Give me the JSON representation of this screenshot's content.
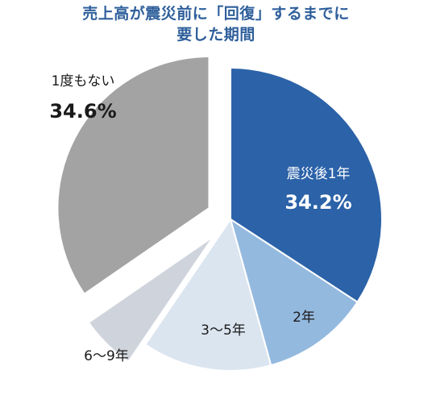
{
  "title": {
    "line1": "売上高が震災前に「回復」するまでに",
    "line2": "要した期間"
  },
  "chart_data": {
    "type": "pie",
    "title": "売上高が震災前に「回復」するまでに要した期間",
    "slices": [
      {
        "label": "震災後1年",
        "value": 34.2,
        "value_label": "34.2%",
        "color": "#2b62a8",
        "exploded": false
      },
      {
        "label": "2年",
        "value": 11.5,
        "value_label": "",
        "color": "#94b9df",
        "exploded": false
      },
      {
        "label": "3～5年",
        "value": 13.8,
        "value_label": "",
        "color": "#dbe5f0",
        "exploded": false
      },
      {
        "label": "6～9年",
        "value": 5.9,
        "value_label": "",
        "color": "#cfd4dc",
        "exploded": true
      },
      {
        "label": "1度もない",
        "value": 34.6,
        "value_label": "34.6%",
        "color": "#a3a3a3",
        "exploded": true
      }
    ],
    "start": "top, clockwise",
    "legend": "none"
  }
}
